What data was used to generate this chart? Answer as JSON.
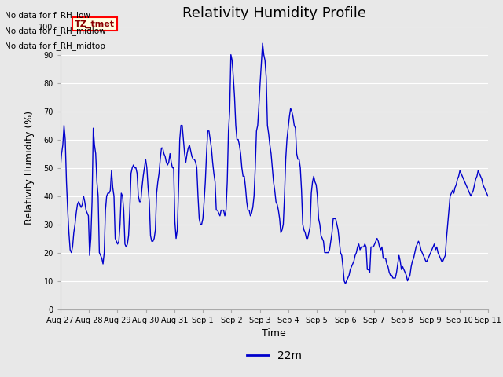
{
  "title": "Relativity Humidity Profile",
  "xlabel": "Time",
  "ylabel": "Relativity Humidity (%)",
  "legend_label": "22m",
  "line_color": "#0000cc",
  "background_color": "#e8e8e8",
  "ylim": [
    0,
    100
  ],
  "yticks": [
    0,
    10,
    20,
    30,
    40,
    50,
    60,
    70,
    80,
    90,
    100
  ],
  "annotations_text": [
    "No data for f_RH_low",
    "No data for f_RH_midlow",
    "No data for f_RH_midtop"
  ],
  "tz_tmet_label": "TZ_tmet",
  "x_tick_labels": [
    "Aug 27",
    "Aug 28",
    "Aug 29",
    "Aug 30",
    "Aug 31",
    "Sep 1",
    "Sep 2",
    "Sep 3",
    "Sep 4",
    "Sep 5",
    "Sep 6",
    "Sep 7",
    "Sep 8",
    "Sep 9",
    "Sep 10",
    "Sep 11"
  ],
  "rh_values": [
    50,
    55,
    58,
    65,
    60,
    45,
    35,
    27,
    21,
    20,
    22,
    27,
    30,
    34,
    37,
    38,
    37,
    36,
    37,
    40,
    38,
    35,
    34,
    33,
    19,
    25,
    38,
    64,
    58,
    55,
    45,
    40,
    20,
    19,
    18,
    16,
    20,
    35,
    40,
    41,
    41,
    42,
    49,
    43,
    40,
    25,
    24,
    23,
    24,
    30,
    41,
    40,
    35,
    23,
    22,
    23,
    26,
    35,
    48,
    50,
    51,
    50,
    50,
    48,
    40,
    38,
    38,
    43,
    47,
    50,
    53,
    50,
    43,
    38,
    26,
    24,
    24,
    25,
    28,
    41,
    45,
    48,
    53,
    57,
    57,
    55,
    54,
    52,
    51,
    52,
    55,
    52,
    50,
    50,
    31,
    25,
    28,
    42,
    60,
    65,
    65,
    60,
    55,
    52,
    55,
    57,
    58,
    56,
    54,
    53,
    53,
    52,
    50,
    40,
    32,
    30,
    30,
    32,
    38,
    45,
    55,
    63,
    63,
    60,
    57,
    52,
    48,
    45,
    35,
    35,
    34,
    33,
    35,
    35,
    35,
    33,
    35,
    45,
    63,
    70,
    90,
    88,
    82,
    75,
    65,
    60,
    60,
    58,
    55,
    50,
    47,
    47,
    43,
    38,
    35,
    35,
    33,
    34,
    36,
    40,
    50,
    63,
    65,
    72,
    80,
    87,
    94,
    90,
    88,
    82,
    65,
    62,
    58,
    55,
    50,
    45,
    42,
    38,
    37,
    35,
    32,
    27,
    28,
    30,
    40,
    53,
    60,
    64,
    68,
    71,
    70,
    68,
    65,
    64,
    55,
    53,
    53,
    50,
    42,
    30,
    28,
    27,
    25,
    25,
    27,
    29,
    41,
    45,
    47,
    45,
    44,
    40,
    32,
    30,
    26,
    25,
    24,
    20,
    20,
    20,
    20,
    21,
    24,
    27,
    32,
    32,
    32,
    30,
    28,
    24,
    20,
    19,
    15,
    10,
    9,
    10,
    11,
    12,
    14,
    15,
    16,
    17,
    19,
    20,
    22,
    23,
    21,
    22,
    22,
    22,
    23,
    22,
    14,
    14,
    13,
    22,
    22,
    22,
    23,
    24,
    25,
    24,
    22,
    21,
    22,
    18,
    18,
    18,
    16,
    15,
    13,
    12,
    12,
    11,
    11,
    11,
    13,
    16,
    19,
    17,
    14,
    15,
    14,
    13,
    12,
    10,
    11,
    12,
    15,
    17,
    18,
    20,
    22,
    23,
    24,
    23,
    21,
    20,
    19,
    18,
    17,
    17,
    18,
    19,
    20,
    21,
    22,
    23,
    21,
    22,
    20,
    19,
    18,
    17,
    17,
    18,
    19,
    25,
    30,
    35,
    40,
    41,
    42,
    41,
    43,
    44,
    46,
    47,
    49,
    48,
    47,
    46,
    45,
    44,
    43,
    42,
    41,
    40,
    41,
    42,
    44,
    46,
    47,
    49,
    48,
    47,
    46,
    44,
    43,
    42,
    41,
    40
  ]
}
